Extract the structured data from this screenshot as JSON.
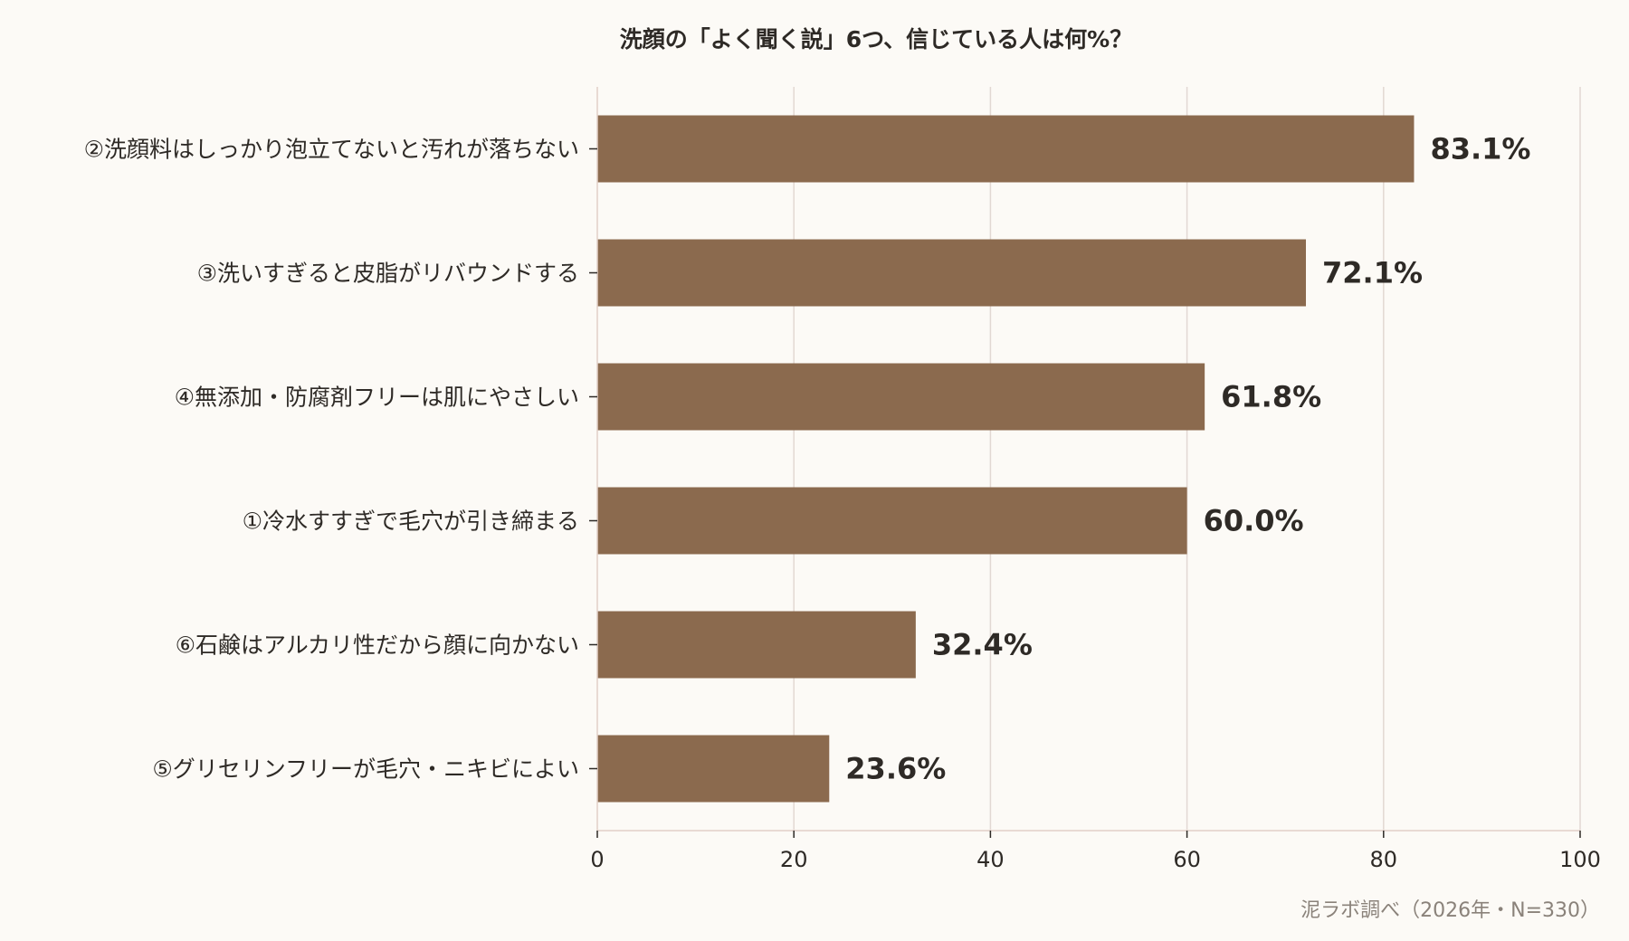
{
  "chart_data": {
    "type": "bar",
    "orientation": "horizontal",
    "title": "洗顔の「よく聞く説」6つ、信じている人は何%？",
    "categories": [
      "②洗顔料はしっかり泡立てないと汚れが落ちない",
      "③洗いすぎると皮脂がリバウンドする",
      "④無添加・防腐剤フリーは肌にやさしい",
      "①冷水すすぎで毛穴が引き締まる",
      "⑥石鹸はアルカリ性だから顔に向かない",
      "⑤グリセリンフリーが毛穴・ニキビによい"
    ],
    "values": [
      83.1,
      72.1,
      61.8,
      60.0,
      32.4,
      23.6
    ],
    "value_labels": [
      "83.1%",
      "72.1%",
      "61.8%",
      "60.0%",
      "32.4%",
      "23.6%"
    ],
    "xlim": [
      0,
      100
    ],
    "xticks": [
      0,
      20,
      40,
      60,
      80,
      100
    ],
    "xtick_labels": [
      "0",
      "20",
      "40",
      "60",
      "80",
      "100"
    ],
    "grid": "vertical",
    "source_note": "泥ラボ調べ（2026年・N=330）",
    "colors": {
      "bar": "#8b6a4e",
      "grid": "#e2d8d3",
      "axis": "#e2cfc7",
      "text": "#2e2a26",
      "note": "#8a827a",
      "background": "#fcfaf6"
    }
  }
}
